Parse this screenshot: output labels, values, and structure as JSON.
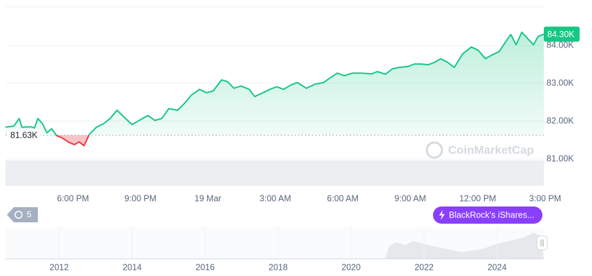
{
  "chart_data": {
    "type": "line",
    "x": [
      0,
      0.37,
      0.61,
      0.73,
      1.13,
      1.29,
      1.44,
      1.65,
      1.84,
      2.05,
      2.27,
      2.51,
      2.82,
      3.06,
      3.28,
      3.49,
      3.73,
      4.04,
      4.35,
      4.65,
      4.96,
      5.27,
      5.63,
      6.03,
      6.34,
      6.64,
      6.95,
      7.26,
      7.65,
      7.96,
      8.27,
      8.63,
      8.94,
      9.24,
      9.61,
      9.86,
      10.16,
      10.47,
      10.84,
      11.08,
      11.45,
      11.76,
      12.06,
      12.37,
      12.67,
      12.98,
      13.38,
      13.78,
      14.14,
      14.45,
      14.76,
      15.06,
      15.43,
      15.83,
      16.29,
      16.53,
      16.9,
      17.2,
      17.51,
      17.88,
      18.18,
      18.49,
      18.8,
      19.1,
      19.35,
      19.65,
      19.96,
      20.33,
      20.72,
      21.03,
      21.34,
      21.64,
      21.95,
      22.26,
      22.47,
      22.71,
      22.96,
      23.27,
      23.48,
      23.69,
      23.94
    ],
    "values": [
      81.84,
      81.87,
      82.07,
      81.84,
      81.85,
      81.82,
      82.07,
      81.93,
      81.69,
      81.8,
      81.62,
      81.56,
      81.44,
      81.38,
      81.45,
      81.35,
      81.65,
      81.84,
      81.93,
      82.07,
      82.29,
      82.11,
      81.91,
      82.05,
      82.15,
      82.02,
      82.07,
      82.33,
      82.29,
      82.47,
      82.69,
      82.84,
      82.75,
      82.8,
      83.09,
      83.05,
      82.87,
      82.93,
      82.84,
      82.65,
      82.75,
      82.84,
      82.91,
      82.84,
      82.95,
      83.02,
      82.87,
      82.98,
      83.02,
      83.15,
      83.27,
      83.2,
      83.27,
      83.27,
      83.25,
      83.31,
      83.24,
      83.38,
      83.42,
      83.44,
      83.51,
      83.51,
      83.49,
      83.56,
      83.65,
      83.56,
      83.42,
      83.78,
      83.96,
      83.87,
      83.65,
      83.75,
      83.84,
      84.11,
      84.29,
      84.02,
      84.35,
      84.15,
      84.02,
      84.24,
      84.3
    ],
    "color": "#16c784",
    "below_color": "#ea3943",
    "baseline": {
      "value": 81.63,
      "label": "81.63K"
    },
    "last_price": {
      "value": 84.3,
      "label": "84.30K"
    },
    "xlim": [
      0,
      23.94
    ],
    "xticks": [
      {
        "value": 3,
        "label": "6:00 PM"
      },
      {
        "value": 6,
        "label": "9:00 PM"
      },
      {
        "value": 9,
        "label": "19 Mar"
      },
      {
        "value": 12,
        "label": "3:00 AM"
      },
      {
        "value": 15,
        "label": "6:00 AM"
      },
      {
        "value": 18,
        "label": "9:00 AM"
      },
      {
        "value": 21,
        "label": "12:00 PM"
      },
      {
        "value": 24,
        "label": "3:00 PM"
      }
    ],
    "ylim": [
      80.29,
      85.02
    ],
    "yticks": [
      {
        "value": 81,
        "label": "81.00K"
      },
      {
        "value": 82,
        "label": "82.00K"
      },
      {
        "value": 83,
        "label": "83.00K"
      },
      {
        "value": 84,
        "label": "84.00K"
      }
    ],
    "grid": true,
    "watermark": "CoinMarketCap",
    "history_count": "5",
    "news_badge": "BlackRock’s iShares...",
    "navigator": {
      "xlim": [
        2010.53,
        2025.28
      ],
      "xticks": [
        2012,
        2014,
        2016,
        2018,
        2020,
        2022,
        2024
      ]
    }
  }
}
